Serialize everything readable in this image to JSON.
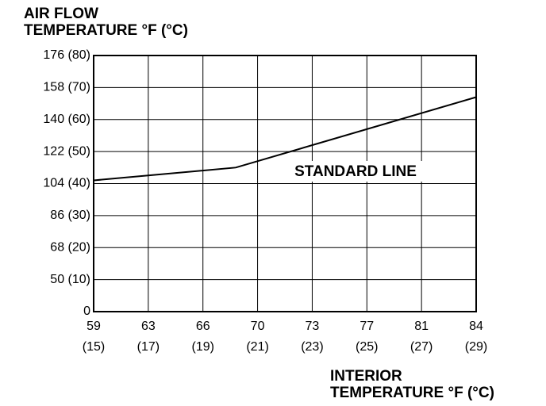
{
  "chart_data": {
    "type": "line",
    "ylabel": [
      "AIR FLOW",
      "TEMPERATURE °F (°C)"
    ],
    "xlabel": [
      "INTERIOR",
      "TEMPERATURE °F (°C)"
    ],
    "x": [
      15,
      20.2,
      29
    ],
    "series": [
      {
        "name": "STANDARD LINE",
        "color": "#000000",
        "values": [
          41,
          45,
          67
        ]
      }
    ],
    "xlim": [
      15,
      29
    ],
    "xticks": [
      {
        "value": 15,
        "label": "59 (15)"
      },
      {
        "value": 17,
        "label": "63 (17)"
      },
      {
        "value": 19,
        "label": "66 (19)"
      },
      {
        "value": 21,
        "label": "70 (21)"
      },
      {
        "value": 23,
        "label": "73 (23)"
      },
      {
        "value": 25,
        "label": "77 (25)"
      },
      {
        "value": 27,
        "label": "81 (27)"
      },
      {
        "value": 29,
        "label": "84 (29)"
      }
    ],
    "ylim": [
      0,
      80
    ],
    "yticks": [
      0,
      {
        "value": 10,
        "label": "50 (10)"
      },
      {
        "value": 20,
        "label": "68 (20)"
      },
      {
        "value": 30,
        "label": "86 (30)"
      },
      {
        "value": 40,
        "label": "104 (40)"
      },
      {
        "value": 50,
        "label": "122 (50)"
      },
      {
        "value": 60,
        "label": "140 (60)"
      },
      {
        "value": 70,
        "label": "158 (70)"
      },
      {
        "value": 80,
        "label": "176 (80)"
      }
    ],
    "grid": true
  }
}
